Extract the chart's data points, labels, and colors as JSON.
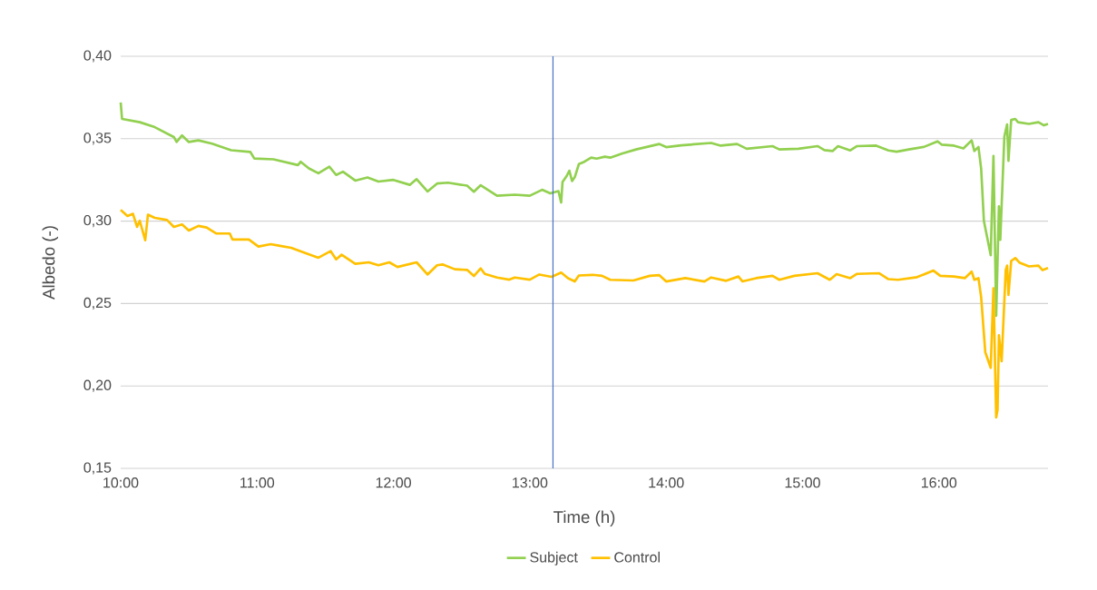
{
  "chart_data": {
    "type": "line",
    "xlabel": "Time (h)",
    "ylabel": "Albedo (-)",
    "xlim": [
      10,
      16.8
    ],
    "ylim": [
      0.15,
      0.4
    ],
    "xticks": [
      {
        "value": 10,
        "label": "10:00"
      },
      {
        "value": 11,
        "label": "11:00"
      },
      {
        "value": 12,
        "label": "12:00"
      },
      {
        "value": 13,
        "label": "13:00"
      },
      {
        "value": 14,
        "label": "14:00"
      },
      {
        "value": 15,
        "label": "15:00"
      },
      {
        "value": 16,
        "label": "16:00"
      }
    ],
    "yticks": [
      {
        "value": 0.15,
        "label": "0,15"
      },
      {
        "value": 0.2,
        "label": "0,20"
      },
      {
        "value": 0.25,
        "label": "0,25"
      },
      {
        "value": 0.3,
        "label": "0,30"
      },
      {
        "value": 0.35,
        "label": "0,35"
      },
      {
        "value": 0.4,
        "label": "0,40"
      }
    ],
    "grid": "y",
    "legend": "bottom",
    "ref_lines": [
      {
        "axis": "x",
        "value": 13.17,
        "color": "#4472c4"
      }
    ],
    "series": [
      {
        "name": "Subject",
        "color": "#92d050",
        "x": [
          10.0,
          10.01,
          10.14,
          10.25,
          10.39,
          10.41,
          10.45,
          10.5,
          10.57,
          10.67,
          10.81,
          10.95,
          10.98,
          11.12,
          11.3,
          11.32,
          11.38,
          11.45,
          11.53,
          11.58,
          11.63,
          11.72,
          11.81,
          11.89,
          12.0,
          12.12,
          12.17,
          12.25,
          12.32,
          12.4,
          12.54,
          12.59,
          12.64,
          12.76,
          12.89,
          13.0,
          13.09,
          13.15,
          13.21,
          13.23,
          13.24,
          13.27,
          13.29,
          13.31,
          13.33,
          13.36,
          13.4,
          13.45,
          13.49,
          13.55,
          13.59,
          13.68,
          13.78,
          13.95,
          14.0,
          14.11,
          14.33,
          14.4,
          14.52,
          14.59,
          14.78,
          14.83,
          14.97,
          15.11,
          15.16,
          15.22,
          15.26,
          15.35,
          15.4,
          15.54,
          15.63,
          15.69,
          15.78,
          15.89,
          15.99,
          16.02,
          16.11,
          16.18,
          16.24,
          16.26,
          16.29,
          16.31,
          16.33,
          16.38,
          16.4,
          16.42,
          16.44,
          16.45,
          16.48,
          16.5,
          16.51,
          16.53,
          16.56,
          16.58,
          16.66,
          16.73,
          16.77,
          16.8
        ],
        "values": [
          0.372,
          0.362,
          0.36,
          0.357,
          0.351,
          0.348,
          0.352,
          0.348,
          0.349,
          0.347,
          0.343,
          0.342,
          0.338,
          0.3375,
          0.334,
          0.336,
          0.332,
          0.329,
          0.333,
          0.328,
          0.33,
          0.3246,
          0.3265,
          0.324,
          0.325,
          0.322,
          0.3255,
          0.318,
          0.3228,
          0.3233,
          0.3215,
          0.3178,
          0.3218,
          0.3154,
          0.316,
          0.3154,
          0.319,
          0.3168,
          0.3182,
          0.3113,
          0.3237,
          0.3273,
          0.3306,
          0.3243,
          0.3267,
          0.3346,
          0.336,
          0.3385,
          0.3379,
          0.3391,
          0.3385,
          0.3411,
          0.3435,
          0.3468,
          0.3449,
          0.346,
          0.3474,
          0.3458,
          0.3468,
          0.3439,
          0.3455,
          0.3435,
          0.3439,
          0.3455,
          0.3431,
          0.3425,
          0.3455,
          0.3429,
          0.3455,
          0.3458,
          0.3429,
          0.3421,
          0.3435,
          0.345,
          0.3484,
          0.3464,
          0.3458,
          0.3441,
          0.349,
          0.3425,
          0.345,
          0.3316,
          0.3,
          0.2793,
          0.3395,
          0.2426,
          0.309,
          0.2887,
          0.3513,
          0.3587,
          0.3366,
          0.3614,
          0.362,
          0.36,
          0.359,
          0.36,
          0.3581,
          0.359
        ]
      },
      {
        "name": "Control",
        "color": "#ffc000",
        "x": [
          10.0,
          10.05,
          10.09,
          10.12,
          10.14,
          10.18,
          10.2,
          10.25,
          10.34,
          10.39,
          10.45,
          10.5,
          10.57,
          10.63,
          10.7,
          10.8,
          10.82,
          10.94,
          11.01,
          11.1,
          11.16,
          11.25,
          11.34,
          11.45,
          11.54,
          11.58,
          11.62,
          11.72,
          11.82,
          11.89,
          11.97,
          12.03,
          12.17,
          12.25,
          12.32,
          12.36,
          12.45,
          12.54,
          12.59,
          12.64,
          12.67,
          12.76,
          12.85,
          12.89,
          13.0,
          13.07,
          13.16,
          13.23,
          13.28,
          13.33,
          13.36,
          13.46,
          13.53,
          13.59,
          13.76,
          13.88,
          13.95,
          14.0,
          14.14,
          14.28,
          14.33,
          14.44,
          14.53,
          14.56,
          14.66,
          14.78,
          14.83,
          14.94,
          15.11,
          15.2,
          15.25,
          15.35,
          15.4,
          15.56,
          15.63,
          15.7,
          15.84,
          15.96,
          16.01,
          16.11,
          16.19,
          16.24,
          16.26,
          16.29,
          16.31,
          16.34,
          16.38,
          16.4,
          16.42,
          16.43,
          16.44,
          16.46,
          16.49,
          16.5,
          16.51,
          16.53,
          16.56,
          16.59,
          16.66,
          16.73,
          16.76,
          16.8
        ],
        "values": [
          0.3068,
          0.3031,
          0.3044,
          0.2965,
          0.3002,
          0.2884,
          0.3039,
          0.302,
          0.3007,
          0.2965,
          0.298,
          0.2943,
          0.2971,
          0.2961,
          0.2925,
          0.2925,
          0.2888,
          0.2888,
          0.2846,
          0.286,
          0.2851,
          0.2838,
          0.281,
          0.2778,
          0.2818,
          0.2768,
          0.2796,
          0.2741,
          0.275,
          0.2732,
          0.275,
          0.2722,
          0.275,
          0.2676,
          0.2732,
          0.2737,
          0.2708,
          0.2704,
          0.2667,
          0.2713,
          0.268,
          0.2658,
          0.2645,
          0.2658,
          0.2645,
          0.2676,
          0.2662,
          0.2688,
          0.2654,
          0.2634,
          0.267,
          0.2674,
          0.2668,
          0.2644,
          0.264,
          0.2668,
          0.2672,
          0.2634,
          0.2654,
          0.2634,
          0.2658,
          0.2638,
          0.2664,
          0.2634,
          0.2654,
          0.2668,
          0.2644,
          0.2668,
          0.2684,
          0.2644,
          0.2678,
          0.2654,
          0.268,
          0.2684,
          0.2648,
          0.2644,
          0.266,
          0.27,
          0.2668,
          0.2664,
          0.2654,
          0.2694,
          0.2644,
          0.2654,
          0.2537,
          0.2205,
          0.211,
          0.2593,
          0.1809,
          0.1855,
          0.2307,
          0.215,
          0.2703,
          0.273,
          0.2552,
          0.2758,
          0.2776,
          0.2749,
          0.2725,
          0.273,
          0.2703,
          0.2715
        ]
      }
    ]
  }
}
